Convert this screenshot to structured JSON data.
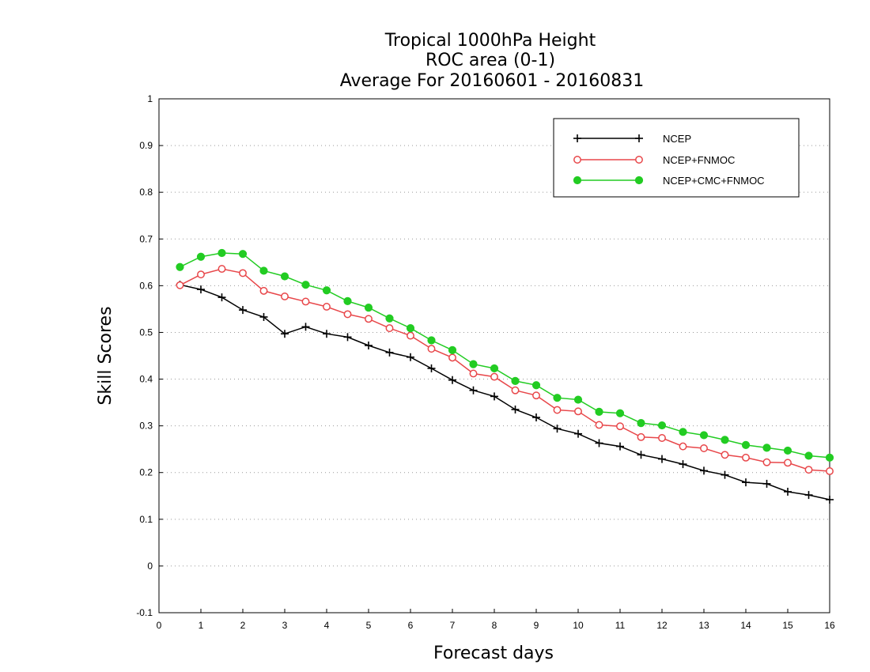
{
  "chart_data": {
    "type": "line",
    "title": [
      "Tropical 1000hPa Height",
      "ROC area (0-1)",
      "Average For 20160601 - 20160831"
    ],
    "xlabel": "Forecast days",
    "ylabel": "Skill Scores",
    "xlim": [
      0,
      16
    ],
    "ylim": [
      -0.1,
      1
    ],
    "x_ticks": [
      "0",
      "1",
      "2",
      "3",
      "4",
      "5",
      "6",
      "7",
      "8",
      "9",
      "10",
      "11",
      "12",
      "13",
      "14",
      "15",
      "16"
    ],
    "y_ticks": [
      "-0.1",
      "0",
      "0.1",
      "0.2",
      "0.3",
      "0.4",
      "0.5",
      "0.6",
      "0.7",
      "0.8",
      "0.9",
      "1"
    ],
    "grid": "horizontal dotted",
    "legend_position": "top-right",
    "x": [
      0.5,
      1,
      1.5,
      2,
      2.5,
      3,
      3.5,
      4,
      4.5,
      5,
      5.5,
      6,
      6.5,
      7,
      7.5,
      8,
      8.5,
      9,
      9.5,
      10,
      10.5,
      11,
      11.5,
      12,
      12.5,
      13,
      13.5,
      14,
      14.5,
      15,
      15.5,
      16
    ],
    "series": [
      {
        "name": "NCEP",
        "color": "#000000",
        "marker": "plus",
        "values": [
          0.602,
          0.592,
          0.575,
          0.548,
          0.533,
          0.497,
          0.512,
          0.497,
          0.49,
          0.472,
          0.457,
          0.447,
          0.423,
          0.398,
          0.376,
          0.363,
          0.335,
          0.318,
          0.294,
          0.283,
          0.263,
          0.256,
          0.238,
          0.229,
          0.218,
          0.204,
          0.195,
          0.179,
          0.176,
          0.159,
          0.152,
          0.142
        ]
      },
      {
        "name": "NCEP+FNMOC",
        "color": "#e8474a",
        "marker": "open-circle",
        "values": [
          0.601,
          0.624,
          0.636,
          0.627,
          0.589,
          0.577,
          0.566,
          0.555,
          0.539,
          0.529,
          0.509,
          0.493,
          0.465,
          0.446,
          0.412,
          0.405,
          0.376,
          0.365,
          0.334,
          0.331,
          0.302,
          0.299,
          0.276,
          0.274,
          0.256,
          0.252,
          0.238,
          0.232,
          0.222,
          0.221,
          0.206,
          0.203
        ]
      },
      {
        "name": "NCEP+CMC+FNMOC",
        "color": "#22cc22",
        "marker": "filled-circle",
        "values": [
          0.64,
          0.662,
          0.67,
          0.668,
          0.632,
          0.62,
          0.602,
          0.59,
          0.567,
          0.553,
          0.53,
          0.509,
          0.483,
          0.462,
          0.432,
          0.423,
          0.396,
          0.387,
          0.36,
          0.356,
          0.33,
          0.327,
          0.306,
          0.301,
          0.287,
          0.28,
          0.27,
          0.259,
          0.253,
          0.247,
          0.236,
          0.232
        ]
      }
    ]
  }
}
